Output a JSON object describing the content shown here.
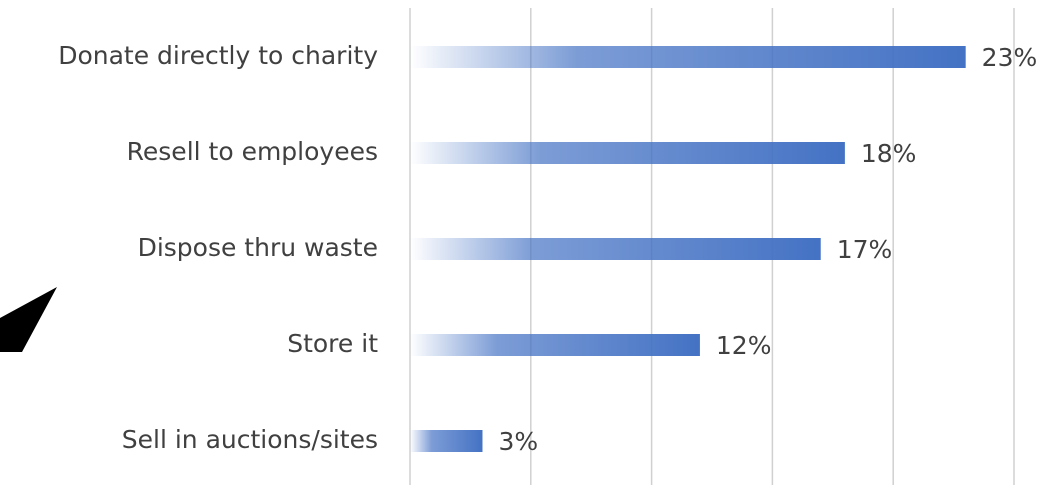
{
  "chart_data": {
    "type": "bar",
    "orientation": "horizontal",
    "categories": [
      "Donate directly to charity",
      "Resell to employees",
      "Dispose thru waste",
      "Store it",
      "Sell in auctions/sites"
    ],
    "values": [
      23,
      18,
      17,
      12,
      3
    ],
    "value_labels": [
      "23%",
      "18%",
      "17%",
      "12%",
      "3%"
    ],
    "color": "#4472c4",
    "xlim": [
      0,
      25
    ],
    "xticks": [
      0,
      5,
      10,
      15,
      20,
      25
    ],
    "grid": true
  }
}
